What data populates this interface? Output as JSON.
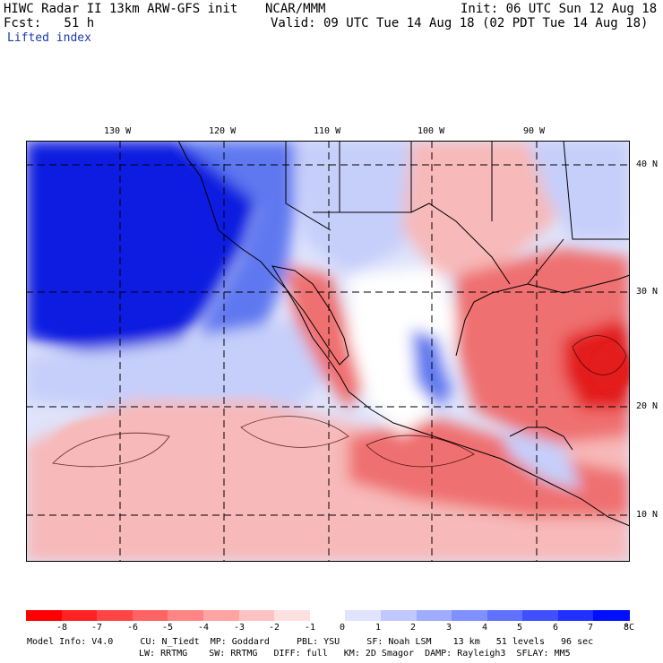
{
  "header": {
    "model_title": "HIWC Radar II 13km ARW-GFS init",
    "org": "NCAR/MMM",
    "init": "Init: 06 UTC Sun 12 Aug 18",
    "fcst": "Fcst:   51 h",
    "valid": "Valid: 09 UTC Tue 14 Aug 18 (02 PDT Tue 14 Aug 18)",
    "field": "Lifted index"
  },
  "map": {
    "lon_labels": [
      "130 W",
      "120 W",
      "110 W",
      "100 W",
      "90 W"
    ],
    "lat_labels": [
      "40 N",
      "30 N",
      "20 N",
      "10 N"
    ],
    "colors": {
      "deep_blue": "#0a1fe0",
      "mid_blue": "#5f78f0",
      "light_blue": "#c6cffa",
      "white": "#ffffff",
      "light_red": "#f7b9b9",
      "mid_red": "#ef6f6f",
      "deep_red": "#e31f1f"
    }
  },
  "colorbar": {
    "ticks": [
      "-8",
      "-7",
      "-6",
      "-5",
      "-4",
      "-3",
      "-2",
      "-1",
      "0",
      "1",
      "2",
      "3",
      "4",
      "5",
      "6",
      "7",
      "8"
    ],
    "unit": "°C",
    "colors": [
      "#ff0000",
      "#ff2222",
      "#ff4545",
      "#ff6464",
      "#ff8585",
      "#ffa3a3",
      "#ffc2c2",
      "#ffe0e0",
      "#ffffff",
      "#e0e4ff",
      "#c0c8ff",
      "#a0acff",
      "#8090ff",
      "#6070ff",
      "#4050ff",
      "#2030ff",
      "#0010ff"
    ]
  },
  "footer": {
    "line1": "Model Info: V4.0     CU: N_Tiedt  MP: Goddard     PBL: YSU     SF: Noah LSM    13 km   51 levels   96 sec",
    "line2": "LW: RRTMG    SW: RRTMG   DIFF: full   KM: 2D Smagor  DAMP: Rayleigh3  SFLAY: MM5"
  }
}
